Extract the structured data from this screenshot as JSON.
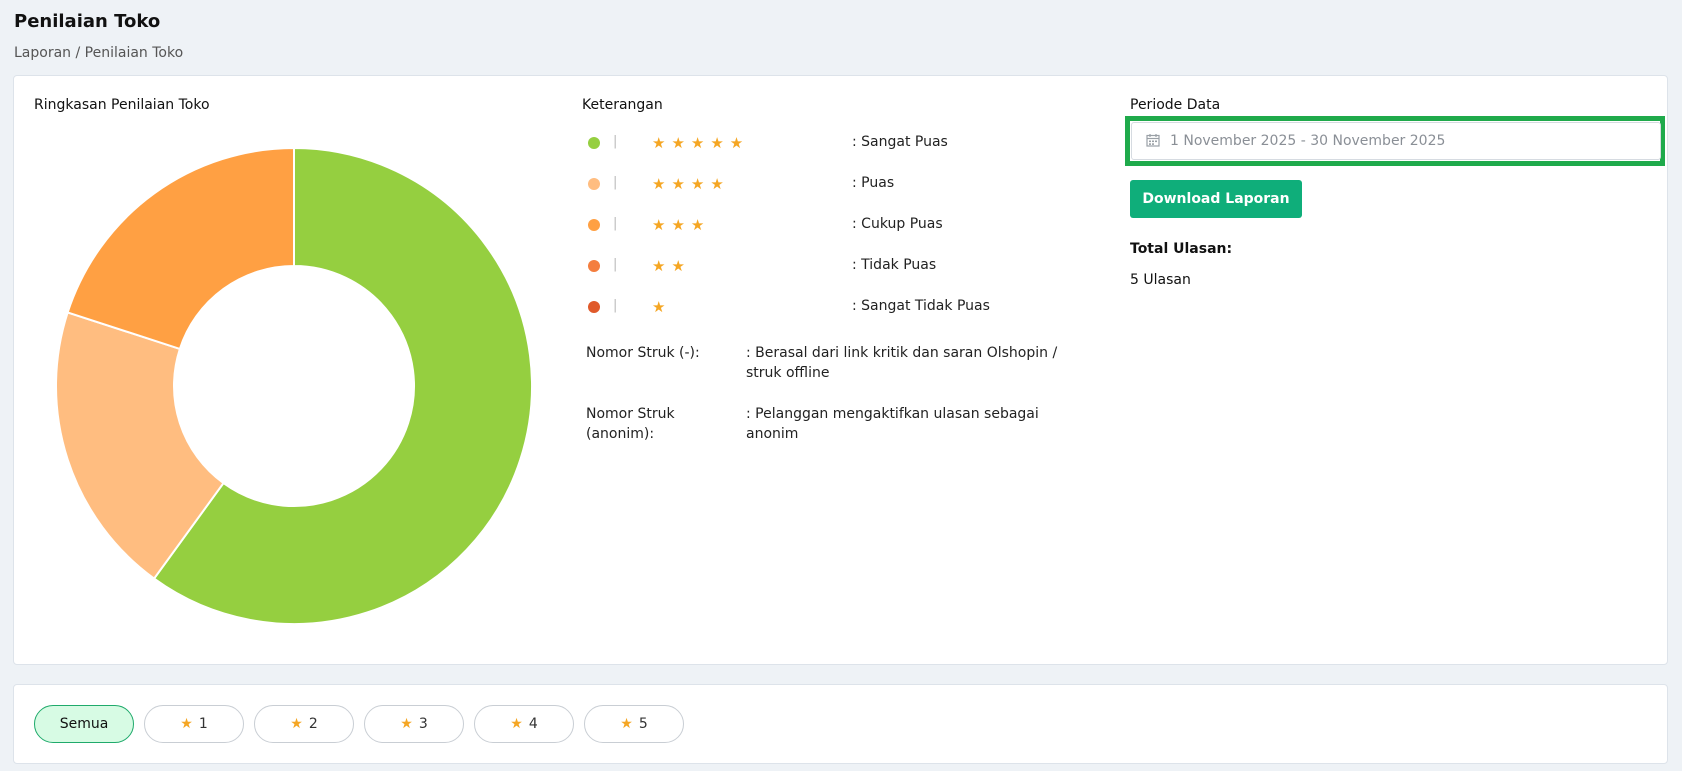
{
  "header": {
    "title": "Penilaian Toko",
    "breadcrumb": "Laporan / Penilaian Toko"
  },
  "summary": {
    "title": "Ringkasan Penilaian Toko"
  },
  "chart_data": {
    "type": "pie",
    "title": "",
    "categories": [
      "Sangat Puas",
      "Puas",
      "Cukup Puas"
    ],
    "values": [
      3,
      1,
      1
    ],
    "colors": [
      "#95cf40",
      "#ffbd80",
      "#ffa043"
    ],
    "donut": true,
    "legend": "right"
  },
  "legend": {
    "title": "Keterangan",
    "items": [
      {
        "color": "#95cf40",
        "stars": 5,
        "label": ": Sangat Puas"
      },
      {
        "color": "#ffbd80",
        "stars": 4,
        "label": ": Puas"
      },
      {
        "color": "#ffa043",
        "stars": 3,
        "label": ": Cukup Puas"
      },
      {
        "color": "#f47e3f",
        "stars": 2,
        "label": ": Tidak Puas"
      },
      {
        "color": "#e05a2b",
        "stars": 1,
        "label": ": Sangat Tidak Puas"
      }
    ],
    "separator": "|",
    "star_glyph": "★",
    "notes": [
      {
        "key": "Nomor Struk (-):",
        "value": ": Berasal dari link kritik dan saran Olshopin / struk offline"
      },
      {
        "key": "Nomor Struk (anonim):",
        "value": ": Pelanggan mengaktifkan ulasan sebagai anonim"
      }
    ]
  },
  "period": {
    "title": "Periode Data",
    "date_range": "1 November 2025 - 30 November 2025",
    "calendar_icon": "calendar-icon",
    "download_label": "Download Laporan",
    "total_label": "Total Ulasan:",
    "total_value": "5 Ulasan",
    "accent": "#0fae7a",
    "highlight": "#1faa4b"
  },
  "filters": {
    "star_glyph": "★",
    "items": [
      {
        "label": "Semua",
        "active": true,
        "star": false
      },
      {
        "label": "1",
        "active": false,
        "star": true
      },
      {
        "label": "2",
        "active": false,
        "star": true
      },
      {
        "label": "3",
        "active": false,
        "star": true
      },
      {
        "label": "4",
        "active": false,
        "star": true
      },
      {
        "label": "5",
        "active": false,
        "star": true
      }
    ]
  }
}
